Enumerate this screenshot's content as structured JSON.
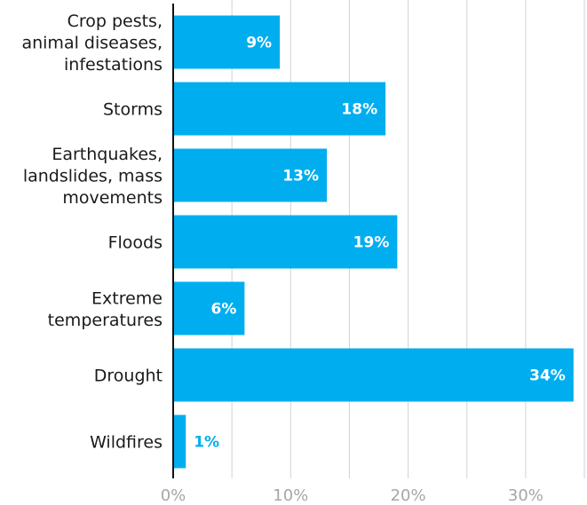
{
  "chart_data": {
    "type": "bar",
    "orientation": "horizontal",
    "categories": [
      [
        "Crop pests,",
        "animal diseases,",
        "infestations"
      ],
      [
        "Storms"
      ],
      [
        "Earthquakes,",
        "landslides, mass",
        "movements"
      ],
      [
        "Floods"
      ],
      [
        "Extreme",
        "temperatures"
      ],
      [
        "Drought"
      ],
      [
        "Wildfires"
      ]
    ],
    "values": [
      9,
      18,
      13,
      19,
      6,
      34,
      1
    ],
    "value_labels": [
      "9%",
      "18%",
      "13%",
      "19%",
      "6%",
      "34%",
      "1%"
    ],
    "x_ticks": [
      {
        "value": 0,
        "label": "0%"
      },
      {
        "value": 10,
        "label": "10%"
      },
      {
        "value": 20,
        "label": "20%"
      },
      {
        "value": 30,
        "label": "30%"
      }
    ],
    "gridline_values": [
      5,
      10,
      15,
      20,
      25,
      30,
      35
    ],
    "xlim": [
      0,
      35
    ],
    "title": "",
    "xlabel": "",
    "ylabel": "",
    "grid": true,
    "colors": {
      "bar": "#00aeef",
      "label_inside": "#ffffff",
      "label_outside": "#00aeef",
      "gridline": "#d2d2d2",
      "axis": "#111111",
      "tick_text": "#a6a6a6",
      "category_text": "#1a1a1a"
    }
  }
}
